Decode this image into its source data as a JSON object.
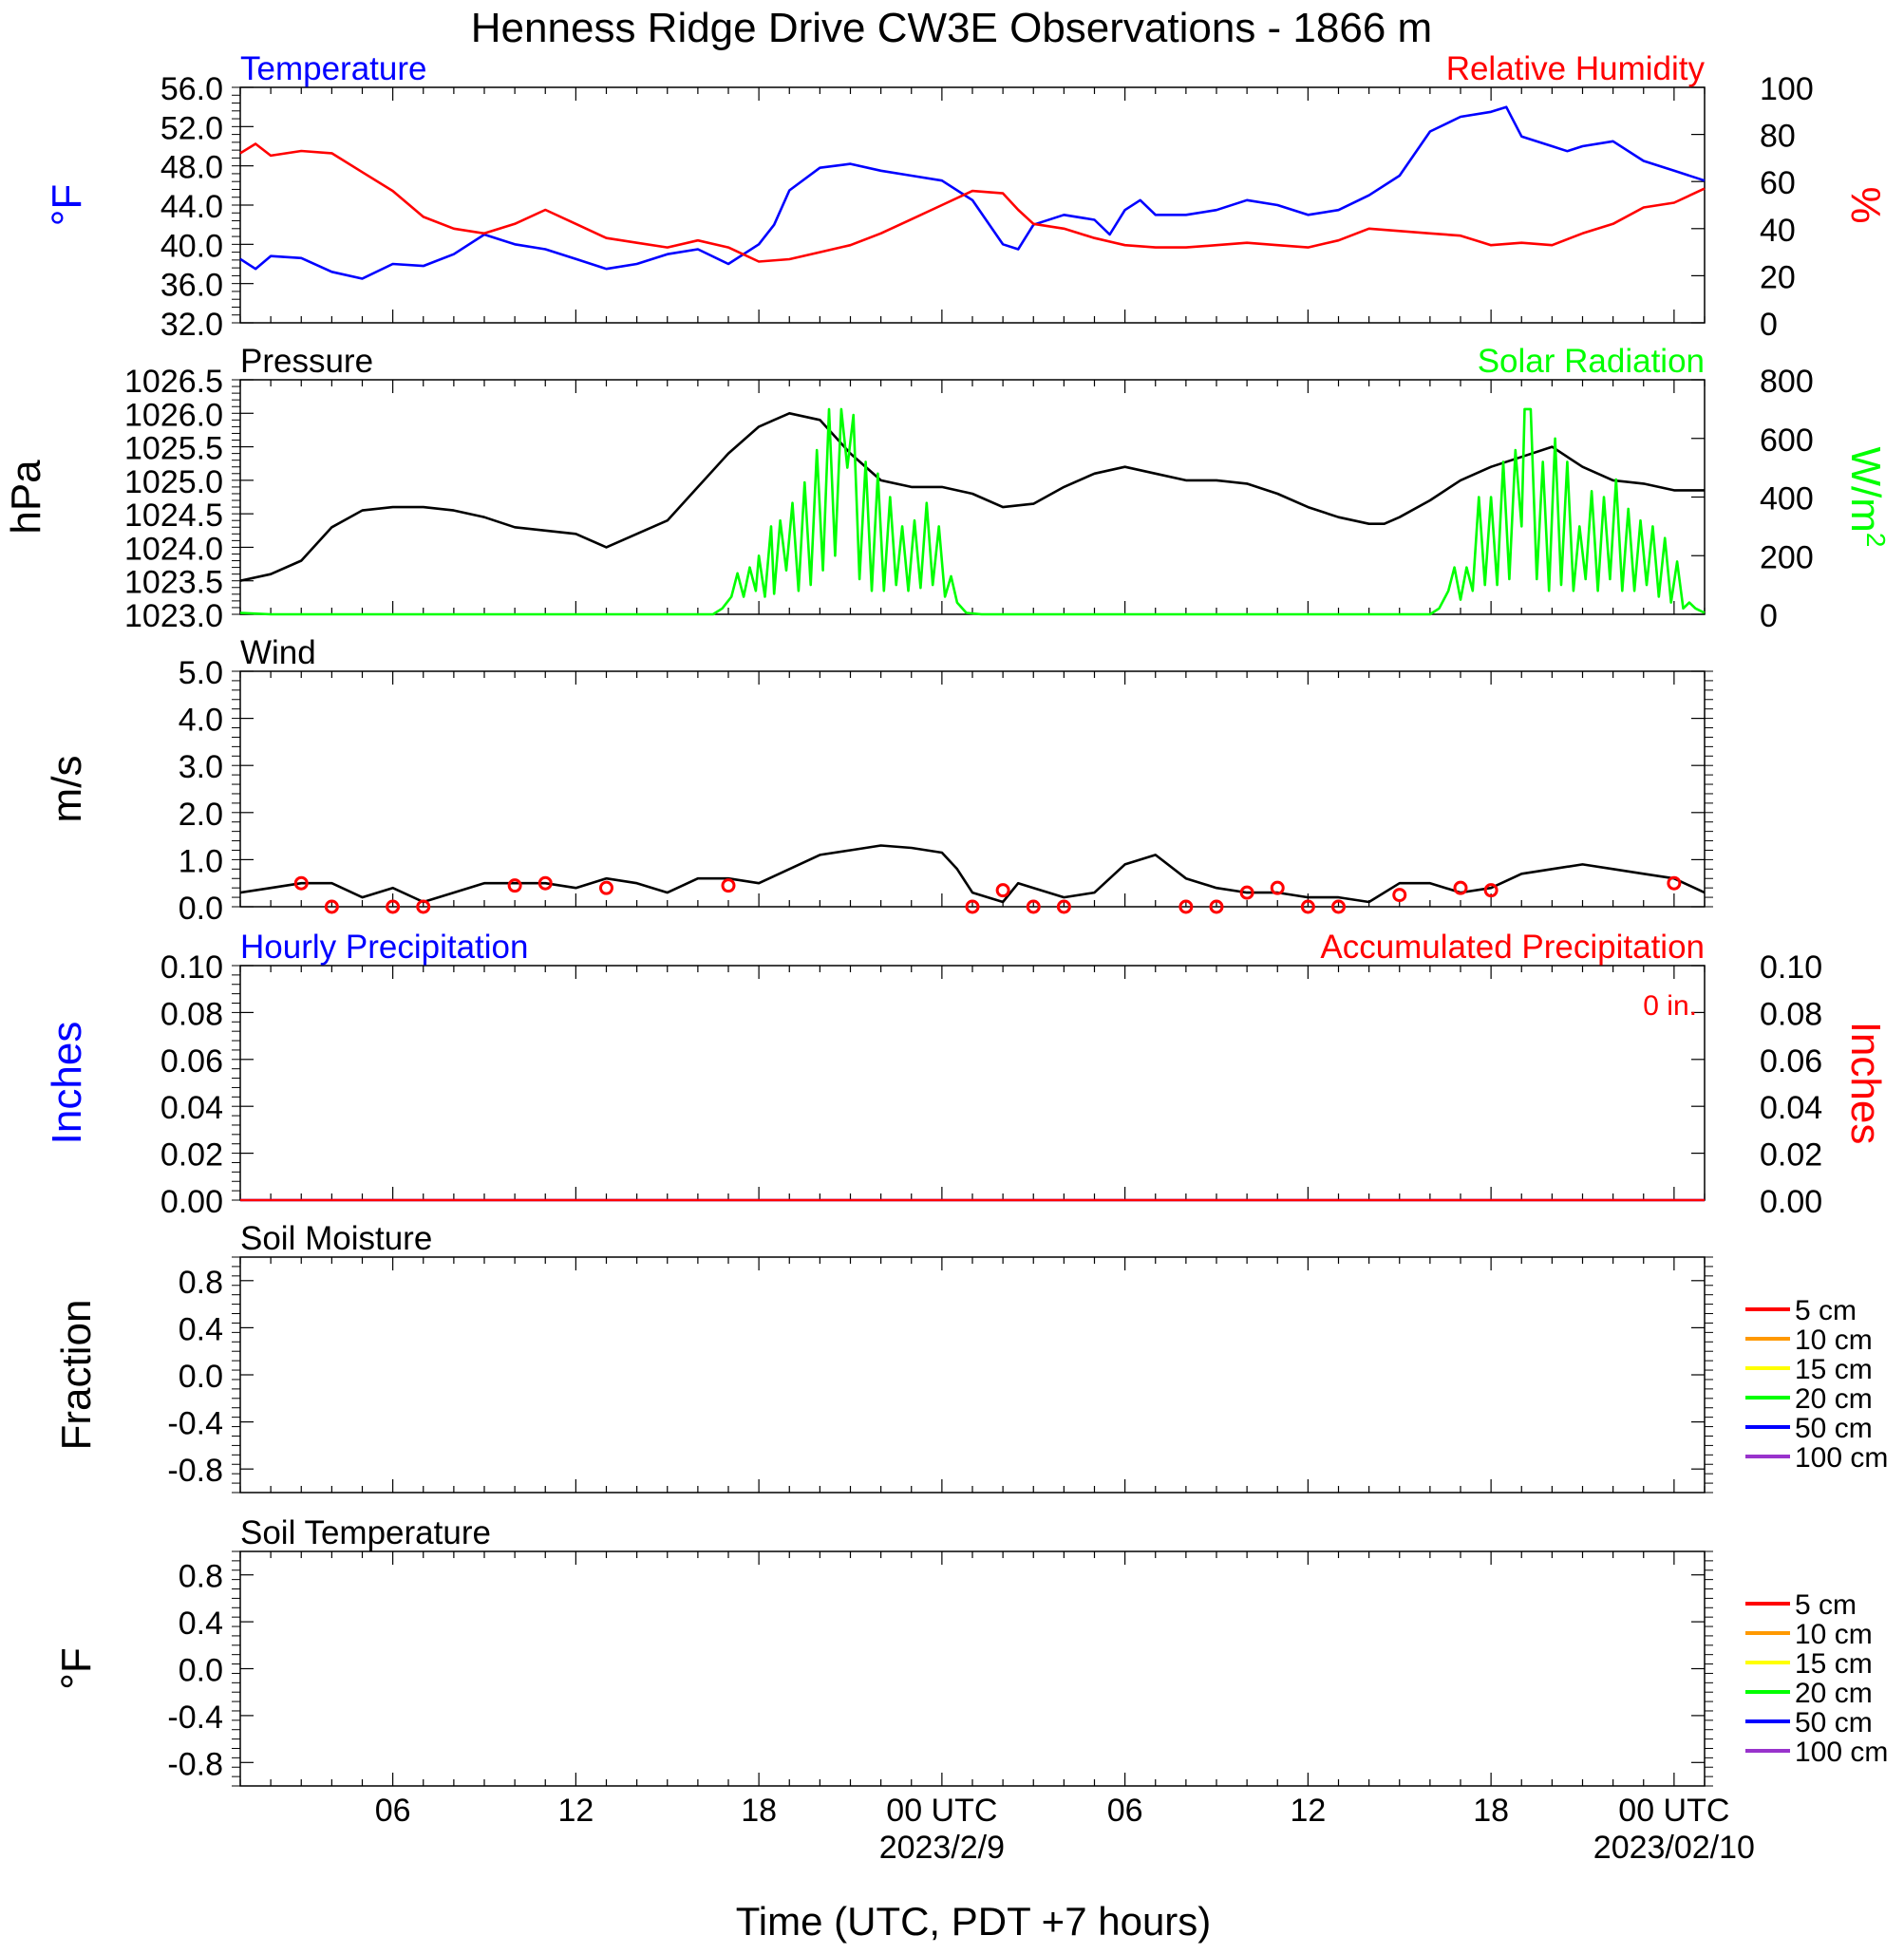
{
  "title": "Henness Ridge Drive CW3E Observations - 1866 m",
  "xaxis": {
    "range_hours": [
      0,
      48
    ],
    "tick_hours": [
      5,
      11,
      17,
      23,
      29,
      35,
      41,
      47
    ],
    "tick_labels": [
      "06",
      "12",
      "18",
      "00 UTC",
      "06",
      "12",
      "18",
      "00 UTC"
    ],
    "date_labels": [
      {
        "hour": 23,
        "text": "2023/2/9"
      },
      {
        "hour": 47,
        "text": "2023/02/10"
      }
    ],
    "label": "Time (UTC, PDT +7 hours)"
  },
  "colors": {
    "blue": "#0000ff",
    "red": "#ff0000",
    "green": "#00ff00",
    "black": "#000000",
    "soil_5": "#ff0000",
    "soil_10": "#ff9900",
    "soil_15": "#ffff00",
    "soil_20": "#00ff00",
    "soil_50": "#0000ff",
    "soil_100": "#9933cc"
  },
  "chart_data": [
    {
      "type": "line",
      "panel": "temperature-humidity",
      "left_title": "Temperature",
      "right_title": "Relative Humidity",
      "ylabel_left": "°F",
      "ylabel_right": "%",
      "ylim_left": [
        32,
        56
      ],
      "yticks_left": [
        "32.0",
        "36.0",
        "40.0",
        "44.0",
        "48.0",
        "52.0",
        "56.0"
      ],
      "ylim_right": [
        0,
        100
      ],
      "yticks_right": [
        "0",
        "20",
        "40",
        "60",
        "80",
        "100"
      ],
      "series": [
        {
          "name": "Temperature",
          "axis": "left",
          "x": [
            0,
            0.5,
            1,
            2,
            3,
            4,
            5,
            6,
            7,
            8,
            9,
            10,
            11,
            12,
            13,
            14,
            15,
            16,
            17,
            17.5,
            18,
            19,
            20,
            21,
            22,
            23,
            24,
            25,
            25.5,
            26,
            27,
            28,
            28.5,
            29,
            29.5,
            30,
            31,
            32,
            33,
            34,
            35,
            36,
            37,
            38,
            39,
            40,
            41,
            41.5,
            42,
            43,
            43.5,
            44,
            45,
            46,
            47,
            48
          ],
          "y": [
            38.5,
            37.5,
            38.8,
            38.6,
            37.2,
            36.5,
            38.0,
            37.8,
            39.0,
            41.0,
            40.0,
            39.5,
            38.5,
            37.5,
            38.0,
            39.0,
            39.5,
            38.0,
            40.0,
            42.0,
            45.5,
            47.8,
            48.2,
            47.5,
            47.0,
            46.5,
            44.5,
            40.0,
            39.5,
            42.0,
            43.0,
            42.5,
            41.0,
            43.5,
            44.5,
            43.0,
            43.0,
            43.5,
            44.5,
            44.0,
            43.0,
            43.5,
            45.0,
            47.0,
            51.5,
            53.0,
            53.5,
            54.0,
            51.0,
            50.0,
            49.5,
            50.0,
            50.5,
            48.5,
            47.5,
            46.5
          ]
        },
        {
          "name": "Relative Humidity",
          "axis": "right",
          "x": [
            0,
            0.5,
            1,
            2,
            3,
            4,
            5,
            6,
            7,
            8,
            9,
            10,
            11,
            12,
            13,
            14,
            15,
            16,
            17,
            18,
            19,
            20,
            21,
            22,
            23,
            24,
            25,
            25.5,
            26,
            27,
            28,
            29,
            30,
            31,
            32,
            33,
            34,
            35,
            36,
            37,
            38,
            39,
            40,
            41,
            42,
            43,
            44,
            45,
            46,
            47,
            48
          ],
          "y": [
            72,
            76,
            71,
            73,
            72,
            64,
            56,
            45,
            40,
            38,
            42,
            48,
            42,
            36,
            34,
            32,
            35,
            32,
            26,
            27,
            30,
            33,
            38,
            44,
            50,
            56,
            55,
            48,
            42,
            40,
            36,
            33,
            32,
            32,
            33,
            34,
            33,
            32,
            35,
            40,
            39,
            38,
            37,
            33,
            34,
            33,
            38,
            42,
            49,
            51,
            57
          ]
        }
      ]
    },
    {
      "type": "line",
      "panel": "pressure-solar",
      "left_title": "Pressure",
      "right_title": "Solar Radiation",
      "ylabel_left": "hPa",
      "ylabel_right": "W/m",
      "ylabel_right_sup": "2",
      "ylim_left": [
        1023.0,
        1026.5
      ],
      "yticks_left": [
        "1023.0",
        "1023.5",
        "1024.0",
        "1024.5",
        "1025.0",
        "1025.5",
        "1026.0",
        "1026.5"
      ],
      "ylim_right": [
        0,
        800
      ],
      "yticks_right": [
        "0",
        "200",
        "400",
        "600",
        "800"
      ],
      "series": [
        {
          "name": "Pressure",
          "axis": "left",
          "x": [
            0,
            1,
            2,
            3,
            4,
            5,
            6,
            7,
            8,
            9,
            10,
            11,
            12,
            13,
            14,
            15,
            16,
            17,
            17.5,
            18,
            19,
            20,
            21,
            22,
            23,
            24,
            25,
            26,
            27,
            28,
            29,
            30,
            31,
            32,
            33,
            34,
            35,
            36,
            37,
            37.5,
            38,
            39,
            40,
            41,
            42,
            43,
            44,
            45,
            46,
            47,
            48
          ],
          "y": [
            1023.5,
            1023.6,
            1023.8,
            1024.3,
            1024.55,
            1024.6,
            1024.6,
            1024.55,
            1024.45,
            1024.3,
            1024.25,
            1024.2,
            1024.0,
            1024.2,
            1024.4,
            1024.9,
            1025.4,
            1025.8,
            1025.9,
            1026.0,
            1025.9,
            1025.4,
            1025.0,
            1024.9,
            1024.9,
            1024.8,
            1024.6,
            1024.65,
            1024.9,
            1025.1,
            1025.2,
            1025.1,
            1025.0,
            1025.0,
            1024.95,
            1024.8,
            1024.6,
            1024.45,
            1024.35,
            1024.35,
            1024.45,
            1024.7,
            1025.0,
            1025.2,
            1025.35,
            1025.5,
            1025.2,
            1025.0,
            1024.95,
            1024.85,
            1024.85
          ]
        },
        {
          "name": "Solar Radiation",
          "axis": "right",
          "x": [
            0,
            1,
            15.5,
            15.8,
            16.1,
            16.3,
            16.5,
            16.7,
            16.9,
            17.0,
            17.2,
            17.4,
            17.5,
            17.7,
            17.9,
            18.1,
            18.3,
            18.5,
            18.7,
            18.9,
            19.1,
            19.3,
            19.5,
            19.7,
            19.9,
            20.1,
            20.3,
            20.5,
            20.7,
            20.9,
            21.1,
            21.3,
            21.5,
            21.7,
            21.9,
            22.1,
            22.3,
            22.5,
            22.7,
            22.9,
            23.1,
            23.3,
            23.5,
            23.8,
            24.3,
            39.0,
            39.3,
            39.6,
            39.8,
            40.0,
            40.2,
            40.4,
            40.6,
            40.8,
            41.0,
            41.2,
            41.4,
            41.6,
            41.8,
            42.0,
            42.1,
            42.3,
            42.5,
            42.7,
            42.9,
            43.1,
            43.3,
            43.5,
            43.7,
            43.9,
            44.1,
            44.3,
            44.5,
            44.7,
            44.9,
            45.1,
            45.3,
            45.5,
            45.7,
            45.9,
            46.1,
            46.3,
            46.5,
            46.7,
            46.9,
            47.1,
            47.3,
            47.5,
            47.7,
            48.0
          ],
          "y": [
            5,
            0,
            0,
            20,
            60,
            140,
            60,
            160,
            80,
            200,
            60,
            300,
            70,
            320,
            150,
            380,
            80,
            450,
            100,
            560,
            150,
            700,
            200,
            700,
            500,
            680,
            120,
            520,
            80,
            480,
            80,
            400,
            100,
            300,
            80,
            320,
            90,
            380,
            100,
            300,
            60,
            130,
            40,
            5,
            0,
            0,
            20,
            80,
            160,
            50,
            160,
            80,
            400,
            100,
            400,
            100,
            520,
            120,
            560,
            300,
            700,
            700,
            120,
            520,
            80,
            600,
            100,
            520,
            80,
            300,
            120,
            420,
            80,
            400,
            120,
            460,
            80,
            360,
            80,
            320,
            100,
            300,
            60,
            260,
            40,
            180,
            20,
            40,
            20,
            5
          ]
        }
      ]
    },
    {
      "type": "line",
      "panel": "wind",
      "left_title": "Wind",
      "ylabel_left": "m/s",
      "ylim_left": [
        0.0,
        5.0
      ],
      "yticks_left": [
        "0.0",
        "1.0",
        "2.0",
        "3.0",
        "4.0",
        "5.0"
      ],
      "series": [
        {
          "name": "Wind",
          "x": [
            0,
            1,
            2,
            3,
            4,
            5,
            6,
            7,
            8,
            9,
            10,
            11,
            12,
            13,
            14,
            15,
            16,
            17,
            18,
            19,
            20,
            21,
            22,
            23,
            23.5,
            24,
            25,
            25.5,
            26,
            27,
            28,
            29,
            30,
            31,
            32,
            33,
            34,
            35,
            36,
            37,
            38,
            39,
            40,
            41,
            42,
            43,
            44,
            45,
            46,
            47,
            48
          ],
          "y": [
            0.3,
            0.4,
            0.5,
            0.5,
            0.2,
            0.4,
            0.1,
            0.3,
            0.5,
            0.5,
            0.5,
            0.4,
            0.6,
            0.5,
            0.3,
            0.6,
            0.6,
            0.5,
            0.8,
            1.1,
            1.2,
            1.3,
            1.25,
            1.15,
            0.8,
            0.3,
            0.1,
            0.5,
            0.4,
            0.2,
            0.3,
            0.9,
            1.1,
            0.6,
            0.4,
            0.3,
            0.3,
            0.2,
            0.2,
            0.1,
            0.5,
            0.5,
            0.3,
            0.4,
            0.7,
            0.8,
            0.9,
            0.8,
            0.7,
            0.6,
            0.3
          ]
        }
      ],
      "wind_station_markers": {
        "hours": [
          2,
          3,
          5,
          6,
          9,
          10,
          12,
          16,
          24,
          25,
          26,
          27,
          31,
          32,
          33,
          34,
          35,
          36,
          38,
          40,
          41,
          47
        ],
        "values": [
          0.5,
          0.0,
          0.0,
          0.0,
          0.45,
          0.5,
          0.4,
          0.45,
          0.0,
          0.35,
          0.0,
          0.0,
          0.0,
          0.0,
          0.3,
          0.4,
          0.0,
          0.0,
          0.25,
          0.4,
          0.35,
          0.5
        ]
      }
    },
    {
      "type": "line",
      "panel": "precipitation",
      "left_title": "Hourly Precipitation",
      "right_title": "Accumulated Precipitation",
      "annotation": "0 in.",
      "ylabel_left": "Inches",
      "ylabel_right": "Inches",
      "ylim_left": [
        0.0,
        0.1
      ],
      "yticks_left": [
        "0.00",
        "0.02",
        "0.04",
        "0.06",
        "0.08",
        "0.10"
      ],
      "ylim_right": [
        0.0,
        0.1
      ],
      "yticks_right": [
        "0.00",
        "0.02",
        "0.04",
        "0.06",
        "0.08",
        "0.10"
      ],
      "series": [
        {
          "name": "Hourly Precipitation",
          "x": [
            0,
            48
          ],
          "y": [
            0,
            0
          ]
        },
        {
          "name": "Accumulated Precipitation",
          "x": [
            0,
            48
          ],
          "y": [
            0,
            0
          ]
        }
      ]
    },
    {
      "type": "line",
      "panel": "soil-moisture",
      "left_title": "Soil Moisture",
      "ylabel_left": "Fraction",
      "ylim_left": [
        -1.0,
        1.0
      ],
      "yticks_left": [
        "-0.8",
        "-0.4",
        "0.0",
        "0.4",
        "0.8"
      ],
      "legend": [
        "5 cm",
        "10 cm",
        "15 cm",
        "20 cm",
        "50 cm",
        "100 cm"
      ],
      "series": []
    },
    {
      "type": "line",
      "panel": "soil-temperature",
      "left_title": "Soil Temperature",
      "ylabel_left": "°F",
      "ylim_left": [
        -1.0,
        1.0
      ],
      "yticks_left": [
        "-0.8",
        "-0.4",
        "0.0",
        "0.4",
        "0.8"
      ],
      "legend": [
        "5 cm",
        "10 cm",
        "15 cm",
        "20 cm",
        "50 cm",
        "100 cm"
      ],
      "series": []
    }
  ]
}
